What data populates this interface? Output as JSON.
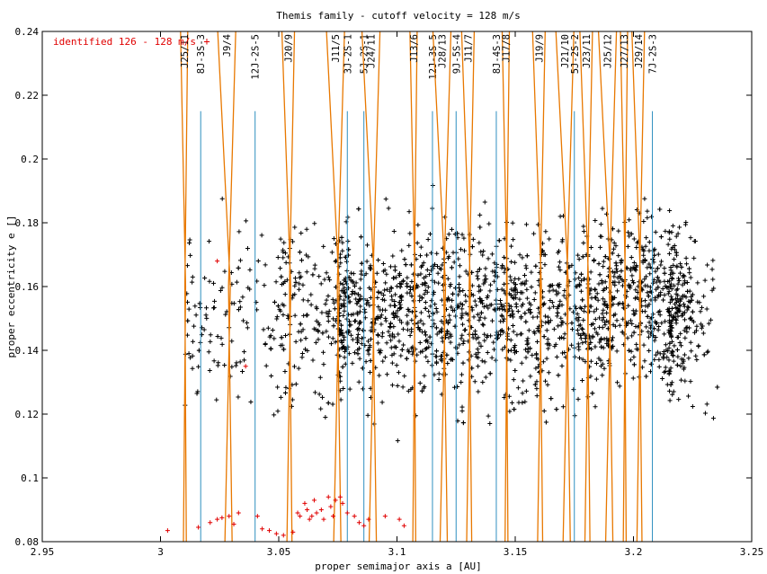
{
  "chart_data": {
    "type": "scatter",
    "title": "Themis family - cutoff velocity = 128 m/s",
    "xlabel": "proper semimajor axis a [AU]",
    "ylabel": "proper eccentricity e []",
    "xlim": [
      2.95,
      3.25
    ],
    "ylim": [
      0.08,
      0.24
    ],
    "x_ticks": [
      "2.95",
      "3",
      "3.05",
      "3.1",
      "3.15",
      "3.2",
      "3.25"
    ],
    "y_ticks": [
      "0.08",
      "0.1",
      "0.12",
      "0.14",
      "0.16",
      "0.18",
      "0.2",
      "0.22",
      "0.24"
    ],
    "grid": false,
    "legend": {
      "position": "top-left",
      "entry": "identified 126 - 128 m/s"
    },
    "colors": {
      "black_points": "#000000",
      "red_points": "#e00000",
      "orange_lines": "#e87800",
      "blue_lines": "#2f8fc0"
    },
    "series": [
      {
        "name": "identified 126 - 128 m/s",
        "color": "#e00000",
        "points": [
          [
            3.003,
            0.0835
          ],
          [
            3.016,
            0.0845
          ],
          [
            3.021,
            0.086
          ],
          [
            3.024,
            0.087
          ],
          [
            3.026,
            0.0875
          ],
          [
            3.029,
            0.088
          ],
          [
            3.031,
            0.0855
          ],
          [
            3.033,
            0.089
          ],
          [
            3.041,
            0.088
          ],
          [
            3.043,
            0.084
          ],
          [
            3.046,
            0.0835
          ],
          [
            3.049,
            0.0825
          ],
          [
            3.052,
            0.082
          ],
          [
            3.056,
            0.083
          ],
          [
            3.058,
            0.089
          ],
          [
            3.059,
            0.088
          ],
          [
            3.061,
            0.092
          ],
          [
            3.062,
            0.09
          ],
          [
            3.063,
            0.087
          ],
          [
            3.064,
            0.088
          ],
          [
            3.065,
            0.093
          ],
          [
            3.066,
            0.089
          ],
          [
            3.068,
            0.09
          ],
          [
            3.069,
            0.087
          ],
          [
            3.071,
            0.094
          ],
          [
            3.072,
            0.091
          ],
          [
            3.073,
            0.088
          ],
          [
            3.074,
            0.093
          ],
          [
            3.076,
            0.094
          ],
          [
            3.077,
            0.092
          ],
          [
            3.079,
            0.089
          ],
          [
            3.082,
            0.088
          ],
          [
            3.084,
            0.086
          ],
          [
            3.086,
            0.085
          ],
          [
            3.088,
            0.087
          ],
          [
            3.095,
            0.088
          ],
          [
            3.101,
            0.087
          ],
          [
            3.103,
            0.085
          ],
          [
            3.036,
            0.135
          ],
          [
            3.024,
            0.168
          ]
        ]
      }
    ],
    "resonances": [
      {
        "label": "J25/11",
        "a": 3.01,
        "kind": "orange"
      },
      {
        "label": "8J-3S-3",
        "a": 3.017,
        "kind": "blue"
      },
      {
        "label": "J9/4",
        "a": 3.028,
        "kind": "orange"
      },
      {
        "label": "12J-2S-5",
        "a": 3.04,
        "kind": "blue"
      },
      {
        "label": "J20/9",
        "a": 3.054,
        "kind": "orange"
      },
      {
        "label": "J11/5",
        "a": 3.074,
        "kind": "orange"
      },
      {
        "label": "3J-2S-1",
        "a": 3.079,
        "kind": "blue"
      },
      {
        "label": "5J-2S-1",
        "a": 3.086,
        "kind": "blue"
      },
      {
        "label": "J24/11",
        "a": 3.089,
        "kind": "orange"
      },
      {
        "label": "J13/6",
        "a": 3.107,
        "kind": "orange"
      },
      {
        "label": "12J-3S-5",
        "a": 3.115,
        "kind": "blue"
      },
      {
        "label": "J28/13",
        "a": 3.119,
        "kind": "orange"
      },
      {
        "label": "9J-5S-4",
        "a": 3.125,
        "kind": "blue"
      },
      {
        "label": "J11/7",
        "a": 3.13,
        "kind": "orange"
      },
      {
        "label": "8J-4S-3",
        "a": 3.142,
        "kind": "blue"
      },
      {
        "label": "J17/8",
        "a": 3.146,
        "kind": "orange"
      },
      {
        "label": "J19/9",
        "a": 3.16,
        "kind": "orange"
      },
      {
        "label": "J21/10",
        "a": 3.171,
        "kind": "orange"
      },
      {
        "label": "5J-2S-2",
        "a": 3.175,
        "kind": "blue"
      },
      {
        "label": "J23/11",
        "a": 3.18,
        "kind": "orange"
      },
      {
        "label": "J25/12",
        "a": 3.189,
        "kind": "orange"
      },
      {
        "label": "J27/13",
        "a": 3.196,
        "kind": "orange"
      },
      {
        "label": "J29/14",
        "a": 3.202,
        "kind": "orange"
      },
      {
        "label": "7J-2S-3",
        "a": 3.208,
        "kind": "blue"
      }
    ]
  }
}
